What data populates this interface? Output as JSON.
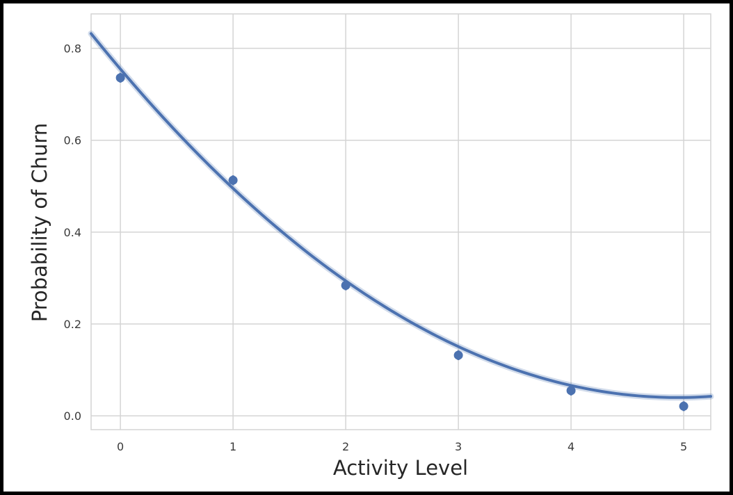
{
  "chart_data": {
    "type": "scatter",
    "xlabel": "Activity Level",
    "ylabel": "Probability of Churn",
    "xlim": [
      -0.26,
      5.24
    ],
    "ylim": [
      -0.03,
      0.875
    ],
    "x_ticks": [
      "0",
      "1",
      "2",
      "3",
      "4",
      "5"
    ],
    "y_ticks": [
      "0.0",
      "0.2",
      "0.4",
      "0.6",
      "0.8"
    ],
    "grid": true,
    "points": [
      {
        "x": 0,
        "y": 0.736
      },
      {
        "x": 1,
        "y": 0.513
      },
      {
        "x": 2,
        "y": 0.284
      },
      {
        "x": 3,
        "y": 0.132
      },
      {
        "x": 4,
        "y": 0.055
      },
      {
        "x": 5,
        "y": 0.021
      }
    ],
    "fit": {
      "type": "quadratic",
      "coefficients": [
        0.755,
        -0.289,
        0.0292
      ],
      "color": "#4c72b0",
      "x_range": [
        -0.26,
        5.24
      ]
    },
    "colors": {
      "series": "#4c72b0",
      "grid": "#d4d4d4",
      "frame": "#000000"
    }
  }
}
